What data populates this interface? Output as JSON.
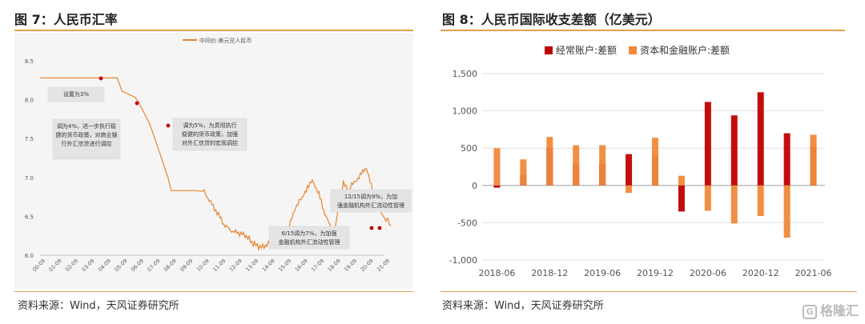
{
  "left": {
    "title": "图 7：人民币汇率",
    "source": "资料来源：Wind，天风证券研究所"
  },
  "right": {
    "title": "图 8：人民币国际收支差额（亿美元）",
    "source": "资料来源：Wind，天风证券研究所"
  },
  "watermark": {
    "text": "格隆汇",
    "icon": "g-logo-icon"
  },
  "colors": {
    "accent": "#e6a04e",
    "line": "#e8852f",
    "red": "#c00000",
    "orange": "#f0893a"
  },
  "chart_data": [
    {
      "type": "line",
      "legend": [
        "中间价:美元兑人民币"
      ],
      "y_ticks": [
        "6.0",
        "6.5",
        "7.0",
        "7.5",
        "8.0",
        "8.5"
      ],
      "ylim": [
        6.0,
        8.5
      ],
      "x_ticks": [
        "00-09",
        "01-09",
        "02-09",
        "03-09",
        "04-09",
        "05-09",
        "06-09",
        "07-09",
        "08-09",
        "09-09",
        "10-09",
        "11-09",
        "12-09",
        "13-09",
        "14-09",
        "15-09",
        "16-09",
        "17-09",
        "18-09",
        "19-09",
        "20-09",
        "21-09"
      ],
      "series": [
        {
          "name": "中间价:美元兑人民币",
          "x": [
            0,
            4.7,
            5.0,
            5.4,
            5.8,
            6.0,
            6.3,
            6.7,
            7.0,
            7.4,
            7.8,
            8.0,
            8.5,
            9.0,
            9.5,
            10.0,
            10.4,
            10.8,
            11.2,
            11.6,
            12.0,
            12.5,
            13.0,
            13.5,
            14.0,
            14.3,
            14.6,
            14.9,
            15.2,
            15.5,
            15.8,
            16.0,
            16.3,
            16.6,
            17.0,
            17.3,
            17.6,
            17.8,
            18.0,
            18.2,
            18.5,
            18.8,
            19.0,
            19.3,
            19.6,
            19.9,
            20.2,
            20.5,
            20.8,
            21.0,
            21.2,
            21.4
          ],
          "y": [
            8.28,
            8.28,
            8.11,
            8.07,
            8.03,
            7.97,
            7.85,
            7.68,
            7.5,
            7.25,
            7.0,
            6.83,
            6.83,
            6.83,
            6.83,
            6.82,
            6.68,
            6.55,
            6.4,
            6.32,
            6.29,
            6.26,
            6.15,
            6.1,
            6.15,
            6.12,
            6.13,
            6.2,
            6.4,
            6.55,
            6.7,
            6.75,
            6.88,
            6.95,
            6.8,
            6.55,
            6.45,
            6.3,
            6.35,
            6.65,
            6.95,
            6.82,
            6.9,
            6.95,
            7.08,
            7.1,
            6.9,
            6.7,
            6.55,
            6.47,
            6.45,
            6.38
          ]
        }
      ],
      "annotations": [
        {
          "text": "设置为3%",
          "x": 4.7,
          "y": 8.28
        },
        {
          "text": "调为4%，进一步执行稳健的货币政策，对商业银行外汇信贷进行调控",
          "x": 6.2,
          "y": 7.97
        },
        {
          "text": "调为5%，为贯彻执行稳健的货币政策，加强对外汇信贷的宏观调控",
          "x": 7.1,
          "y": 7.62
        },
        {
          "text": "6/15调为7%，为加强金融机构外汇流动性管理",
          "x": 20.8,
          "y": 6.37
        },
        {
          "text": "12/15调为9%，为加强金融机构外汇流动性管理",
          "x": 21.3,
          "y": 6.37
        }
      ]
    },
    {
      "type": "bar",
      "legend": [
        "经常账户:差额",
        "资本和金融账户:差额"
      ],
      "x_ticks": [
        "2018-06",
        "2018-12",
        "2019-06",
        "2019-12",
        "2020-06",
        "2020-12",
        "2021-06"
      ],
      "ylim": [
        -1000,
        1500
      ],
      "y_ticks": [
        "1,500",
        "1,000",
        "500",
        "0",
        "-500",
        "-1,000"
      ],
      "categories": [
        "2018Q2",
        "2018Q3",
        "2018Q4",
        "2019Q1",
        "2019Q2",
        "2019Q3",
        "2019Q4",
        "2020Q1",
        "2020Q2",
        "2020Q3",
        "2020Q4",
        "2021Q1",
        "2021Q2"
      ],
      "series": [
        {
          "name": "经常账户:差额",
          "values": [
            -30,
            140,
            500,
            290,
            290,
            420,
            400,
            -350,
            1120,
            940,
            1250,
            700,
            520
          ]
        },
        {
          "name": "资本和金融账户:差额",
          "values": [
            500,
            350,
            650,
            540,
            540,
            -100,
            640,
            130,
            -340,
            -510,
            -410,
            -700,
            680
          ]
        }
      ]
    }
  ]
}
